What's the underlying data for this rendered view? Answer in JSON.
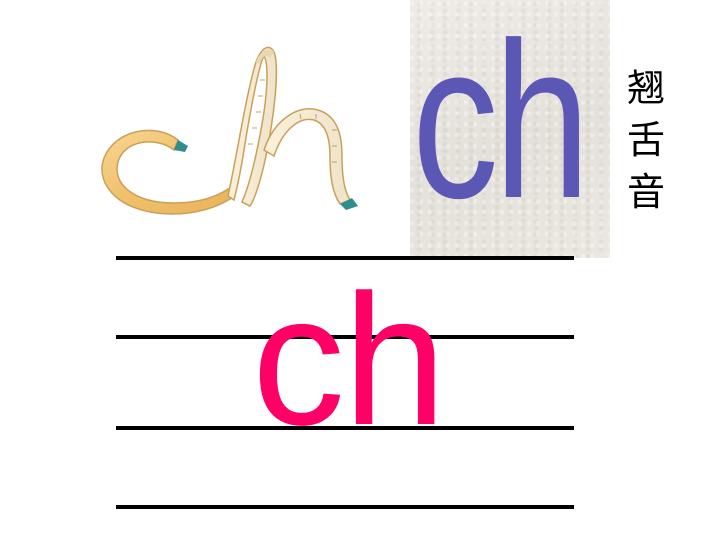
{
  "illustration": {
    "ribbon_icon": "ribbon-ch-icon",
    "ribbon_color": "#f2c77a",
    "ribbon_edge_color": "#c9a05a",
    "ribbon_tip_color": "#2f8e8c"
  },
  "card": {
    "letters": "ch",
    "color": "#5a58b4",
    "background": "#ebe7e2"
  },
  "label": {
    "chars": [
      "翘",
      "舌",
      "音"
    ]
  },
  "main": {
    "letters": "ch",
    "color": "#ff0066"
  }
}
